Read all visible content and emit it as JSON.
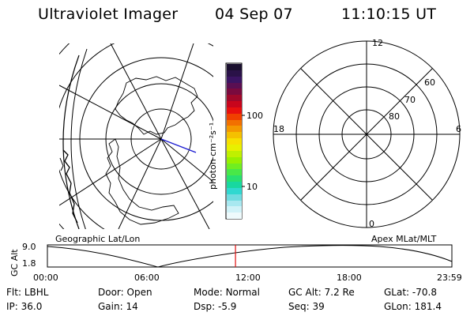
{
  "header": {
    "title": "Ultraviolet Imager",
    "date": "04 Sep 07",
    "time": "11:10:15 UT"
  },
  "geo_map": {
    "label": "Geographic Lat/Lon"
  },
  "colorbar": {
    "unit_label": "photon cm⁻²s⁻¹",
    "ticks": [
      "100",
      "10"
    ],
    "colors": [
      "#1a0f2e",
      "#2a1248",
      "#3b1463",
      "#5a0f52",
      "#7a0a3e",
      "#a0082a",
      "#c8051c",
      "#e8100e",
      "#f04000",
      "#f27000",
      "#f49800",
      "#f5c000",
      "#f7e000",
      "#e8f000",
      "#c0f000",
      "#98f000",
      "#70ee20",
      "#48e848",
      "#28e070",
      "#18d8a0",
      "#30d8d0",
      "#70dce0",
      "#a8e8f0",
      "#d0f2f8",
      "#eefafc"
    ]
  },
  "polar_plot": {
    "label": "Apex MLat/MLT",
    "mlt_labels": {
      "top": "12",
      "bottom": "0",
      "left": "18",
      "right": "6"
    },
    "lat_labels": [
      "60",
      "70",
      "80"
    ]
  },
  "altitude_plot": {
    "ylabel": "GC Alt",
    "yticks": [
      "9.0",
      "1.8"
    ],
    "xticks": [
      "00:00",
      "06:00",
      "12:00",
      "18:00",
      "23:59"
    ],
    "current_time_marker_fraction": 0.465
  },
  "info": {
    "flt": {
      "label": "Flt:",
      "value": "LBHL"
    },
    "ip": {
      "label": "IP:",
      "value": "36.0"
    },
    "door": {
      "label": "Door:",
      "value": "Open"
    },
    "gain": {
      "label": "Gain:",
      "value": "14"
    },
    "mode": {
      "label": "Mode:",
      "value": "Normal"
    },
    "dsp": {
      "label": "Dsp:",
      "value": "-5.9"
    },
    "gcalt": {
      "label": "GC Alt:",
      "value": "7.2 Re"
    },
    "seq": {
      "label": "Seq:",
      "value": "39"
    },
    "glat": {
      "label": "GLat:",
      "value": "-70.8"
    },
    "glon": {
      "label": "GLon:",
      "value": "181.4"
    }
  }
}
